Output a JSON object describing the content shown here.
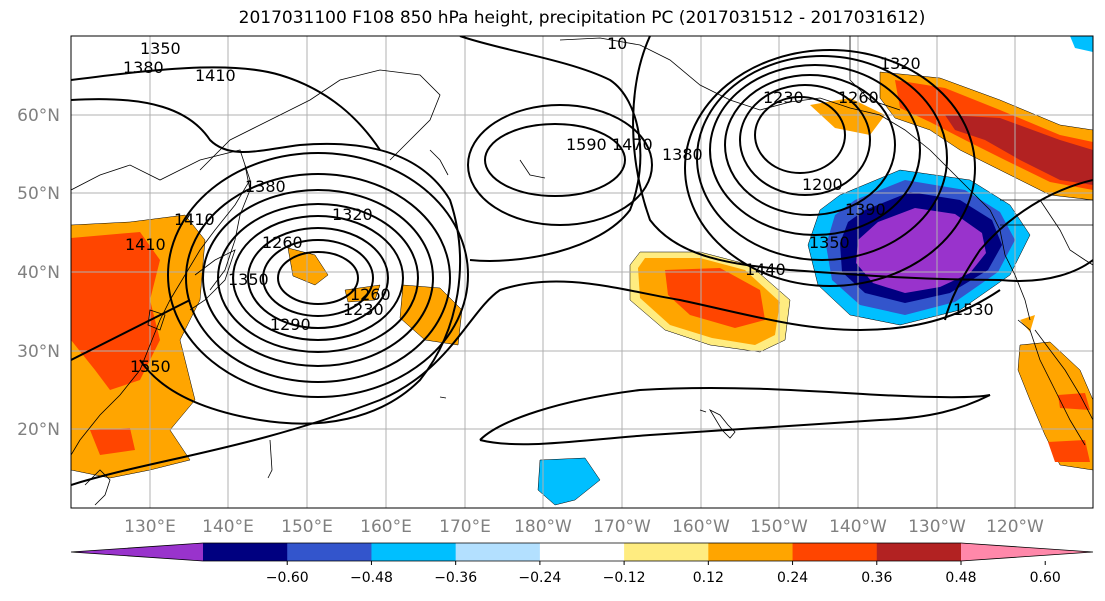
{
  "title": "2017031100 F108 850 hPa height, precipitation PC (2017031512 - 2017031612)",
  "map": {
    "lat_labels": [
      "60°N",
      "50°N",
      "40°N",
      "30°N",
      "20°N"
    ],
    "lon_labels": [
      "130°E",
      "140°E",
      "150°E",
      "160°E",
      "170°E",
      "180°W",
      "170°W",
      "160°W",
      "150°W",
      "140°W",
      "130°W",
      "120°W"
    ],
    "contour_labels": [
      "1350",
      "1380",
      "1410",
      "10",
      "1320",
      "1230",
      "1260",
      "1590",
      "1470",
      "1380",
      "1200",
      "1380",
      "1320",
      "1410",
      "1260",
      "1410",
      "1350",
      "1290",
      "1230",
      "1260",
      "1550",
      "1440",
      "1390",
      "1350",
      "1530"
    ]
  },
  "colorbar": {
    "colors": [
      "#9933cc",
      "#000080",
      "#3355cc",
      "#00bfff",
      "#b3e0ff",
      "#ffffff",
      "#ffec80",
      "#ffa500",
      "#ff4500",
      "#b22222",
      "#ff88aa"
    ],
    "tick_labels": [
      "−0.60",
      "−0.48",
      "−0.36",
      "−0.24",
      "−0.12",
      "0.12",
      "0.24",
      "0.36",
      "0.48",
      "0.60"
    ]
  }
}
